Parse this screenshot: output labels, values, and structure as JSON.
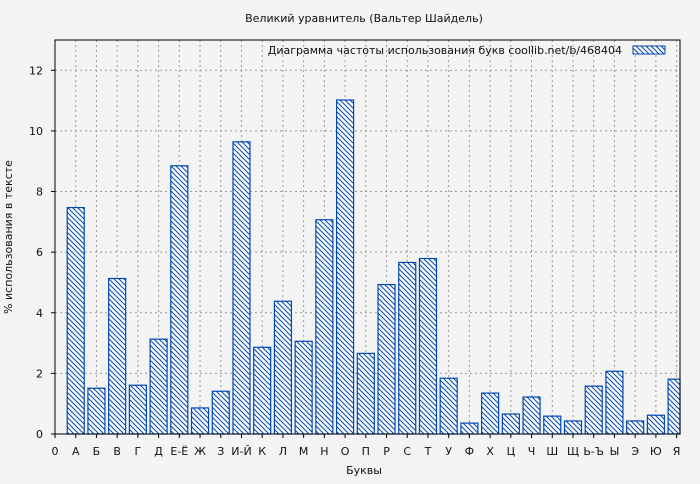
{
  "chart_data": {
    "type": "bar",
    "title": "Великий уравнитель (Вальтер Шайдель)",
    "xlabel": "Буквы",
    "ylabel": "% использования в тексте",
    "legend": {
      "label": "Диаграмма частоты использования букв  coollib.net/b/468404",
      "position": "top-right"
    },
    "origin_label": "0",
    "categories": [
      "А",
      "Б",
      "В",
      "Г",
      "Д",
      "Е-Ё",
      "Ж",
      "З",
      "И-Й",
      "К",
      "Л",
      "М",
      "Н",
      "О",
      "П",
      "Р",
      "С",
      "Т",
      "У",
      "Ф",
      "Х",
      "Ц",
      "Ч",
      "Ш",
      "Щ",
      "Ь-Ъ",
      "Ы",
      "Э",
      "Ю",
      "Я"
    ],
    "values": [
      7.47,
      1.51,
      5.13,
      1.61,
      3.13,
      8.85,
      0.86,
      1.41,
      9.64,
      2.86,
      4.38,
      3.06,
      7.07,
      11.02,
      2.66,
      4.93,
      5.66,
      5.79,
      1.84,
      0.36,
      1.35,
      0.66,
      1.22,
      0.59,
      0.43,
      1.58,
      2.07,
      0.43,
      0.62,
      1.81
    ],
    "ylim": [
      0,
      13
    ],
    "yticks": [
      0,
      2,
      4,
      6,
      8,
      10,
      12
    ],
    "grid": true,
    "colors": {
      "bar": "#0047b3",
      "fill": "#ffffff"
    }
  }
}
